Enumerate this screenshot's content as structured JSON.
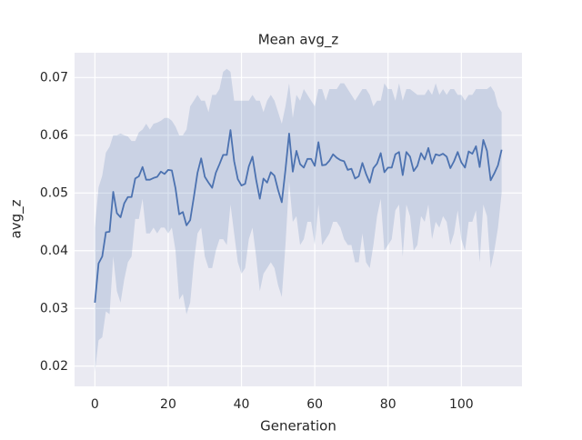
{
  "chart_data": {
    "type": "line",
    "title": "Mean avg_z",
    "x_label": "Generation",
    "y_label": "avg_z",
    "color": "#4c72b0",
    "grid": true,
    "xlim": [
      -5.55,
      116.55
    ],
    "xticks": [
      0,
      20,
      40,
      60,
      80,
      100
    ],
    "ylim": [
      0.0165,
      0.0743
    ],
    "yticks": [
      0.02,
      0.03,
      0.04,
      0.05,
      0.06,
      0.07
    ],
    "x": [
      0,
      1,
      2,
      3,
      4,
      5,
      6,
      7,
      8,
      9,
      10,
      11,
      12,
      13,
      14,
      15,
      16,
      17,
      18,
      19,
      20,
      21,
      22,
      23,
      24,
      25,
      26,
      27,
      28,
      29,
      30,
      31,
      32,
      33,
      34,
      35,
      36,
      37,
      38,
      39,
      40,
      41,
      42,
      43,
      44,
      45,
      46,
      47,
      48,
      49,
      50,
      51,
      52,
      53,
      54,
      55,
      56,
      57,
      58,
      59,
      60,
      61,
      62,
      63,
      64,
      65,
      66,
      67,
      68,
      69,
      70,
      71,
      72,
      73,
      74,
      75,
      76,
      77,
      78,
      79,
      80,
      81,
      82,
      83,
      84,
      85,
      86,
      87,
      88,
      89,
      90,
      91,
      92,
      93,
      94,
      95,
      96,
      97,
      98,
      99,
      100,
      101,
      102,
      103,
      104,
      105,
      106,
      107,
      108,
      109,
      110,
      111
    ],
    "values": [
      0.031,
      0.0378,
      0.039,
      0.0432,
      0.0433,
      0.0502,
      0.0465,
      0.0458,
      0.0482,
      0.0493,
      0.0493,
      0.0525,
      0.0529,
      0.0545,
      0.0523,
      0.0523,
      0.0526,
      0.0528,
      0.0537,
      0.0533,
      0.054,
      0.0539,
      0.0508,
      0.0463,
      0.0467,
      0.0444,
      0.0453,
      0.0493,
      0.0535,
      0.056,
      0.0528,
      0.0518,
      0.0509,
      0.0535,
      0.055,
      0.0566,
      0.0566,
      0.0609,
      0.0555,
      0.0524,
      0.0513,
      0.0516,
      0.0546,
      0.0563,
      0.0523,
      0.049,
      0.0525,
      0.0518,
      0.0536,
      0.053,
      0.0505,
      0.0484,
      0.054,
      0.0603,
      0.0537,
      0.0573,
      0.055,
      0.0544,
      0.0559,
      0.0559,
      0.0547,
      0.0588,
      0.0548,
      0.0549,
      0.0556,
      0.0567,
      0.0561,
      0.0557,
      0.0555,
      0.054,
      0.0542,
      0.0525,
      0.0529,
      0.0552,
      0.0533,
      0.0518,
      0.0543,
      0.0551,
      0.0569,
      0.0536,
      0.0544,
      0.0544,
      0.0567,
      0.0571,
      0.0531,
      0.0571,
      0.0563,
      0.0538,
      0.0547,
      0.0569,
      0.0558,
      0.0578,
      0.0551,
      0.0567,
      0.0565,
      0.0568,
      0.0563,
      0.0543,
      0.0555,
      0.0571,
      0.0553,
      0.0544,
      0.0572,
      0.0568,
      0.0581,
      0.0545,
      0.0592,
      0.0573,
      0.0522,
      0.0534,
      0.0548,
      0.0575
    ],
    "upper": [
      0.044,
      0.051,
      0.053,
      0.057,
      0.058,
      0.06,
      0.06,
      0.0603,
      0.06,
      0.0598,
      0.059,
      0.059,
      0.0605,
      0.061,
      0.062,
      0.061,
      0.062,
      0.0622,
      0.0625,
      0.063,
      0.063,
      0.0625,
      0.0615,
      0.06,
      0.06,
      0.061,
      0.065,
      0.066,
      0.067,
      0.066,
      0.066,
      0.064,
      0.067,
      0.067,
      0.068,
      0.071,
      0.0715,
      0.071,
      0.066,
      0.066,
      0.066,
      0.066,
      0.066,
      0.067,
      0.066,
      0.066,
      0.064,
      0.066,
      0.067,
      0.066,
      0.064,
      0.062,
      0.065,
      0.069,
      0.063,
      0.067,
      0.066,
      0.068,
      0.067,
      0.066,
      0.065,
      0.068,
      0.068,
      0.066,
      0.068,
      0.068,
      0.068,
      0.069,
      0.069,
      0.068,
      0.067,
      0.066,
      0.067,
      0.068,
      0.068,
      0.067,
      0.065,
      0.066,
      0.066,
      0.069,
      0.068,
      0.068,
      0.066,
      0.069,
      0.066,
      0.068,
      0.068,
      0.0675,
      0.067,
      0.067,
      0.067,
      0.068,
      0.067,
      0.069,
      0.067,
      0.068,
      0.067,
      0.068,
      0.068,
      0.067,
      0.067,
      0.066,
      0.067,
      0.067,
      0.068,
      0.068,
      0.068,
      0.068,
      0.0685,
      0.0675,
      0.065,
      0.064
    ],
    "lower": [
      0.019,
      0.0245,
      0.025,
      0.0295,
      0.029,
      0.039,
      0.033,
      0.031,
      0.035,
      0.038,
      0.039,
      0.0455,
      0.0455,
      0.049,
      0.043,
      0.043,
      0.044,
      0.043,
      0.044,
      0.044,
      0.043,
      0.044,
      0.04,
      0.0315,
      0.0325,
      0.029,
      0.031,
      0.038,
      0.043,
      0.044,
      0.039,
      0.037,
      0.037,
      0.04,
      0.042,
      0.042,
      0.041,
      0.048,
      0.043,
      0.038,
      0.036,
      0.037,
      0.042,
      0.044,
      0.039,
      0.033,
      0.036,
      0.037,
      0.038,
      0.037,
      0.034,
      0.032,
      0.041,
      0.052,
      0.045,
      0.046,
      0.041,
      0.042,
      0.045,
      0.045,
      0.041,
      0.048,
      0.041,
      0.042,
      0.043,
      0.045,
      0.045,
      0.044,
      0.042,
      0.041,
      0.041,
      0.038,
      0.038,
      0.043,
      0.038,
      0.037,
      0.041,
      0.046,
      0.049,
      0.04,
      0.041,
      0.042,
      0.047,
      0.048,
      0.039,
      0.048,
      0.046,
      0.04,
      0.041,
      0.046,
      0.045,
      0.048,
      0.042,
      0.045,
      0.044,
      0.046,
      0.045,
      0.041,
      0.043,
      0.047,
      0.042,
      0.04,
      0.045,
      0.045,
      0.047,
      0.038,
      0.048,
      0.046,
      0.037,
      0.04,
      0.044,
      0.05
    ]
  }
}
